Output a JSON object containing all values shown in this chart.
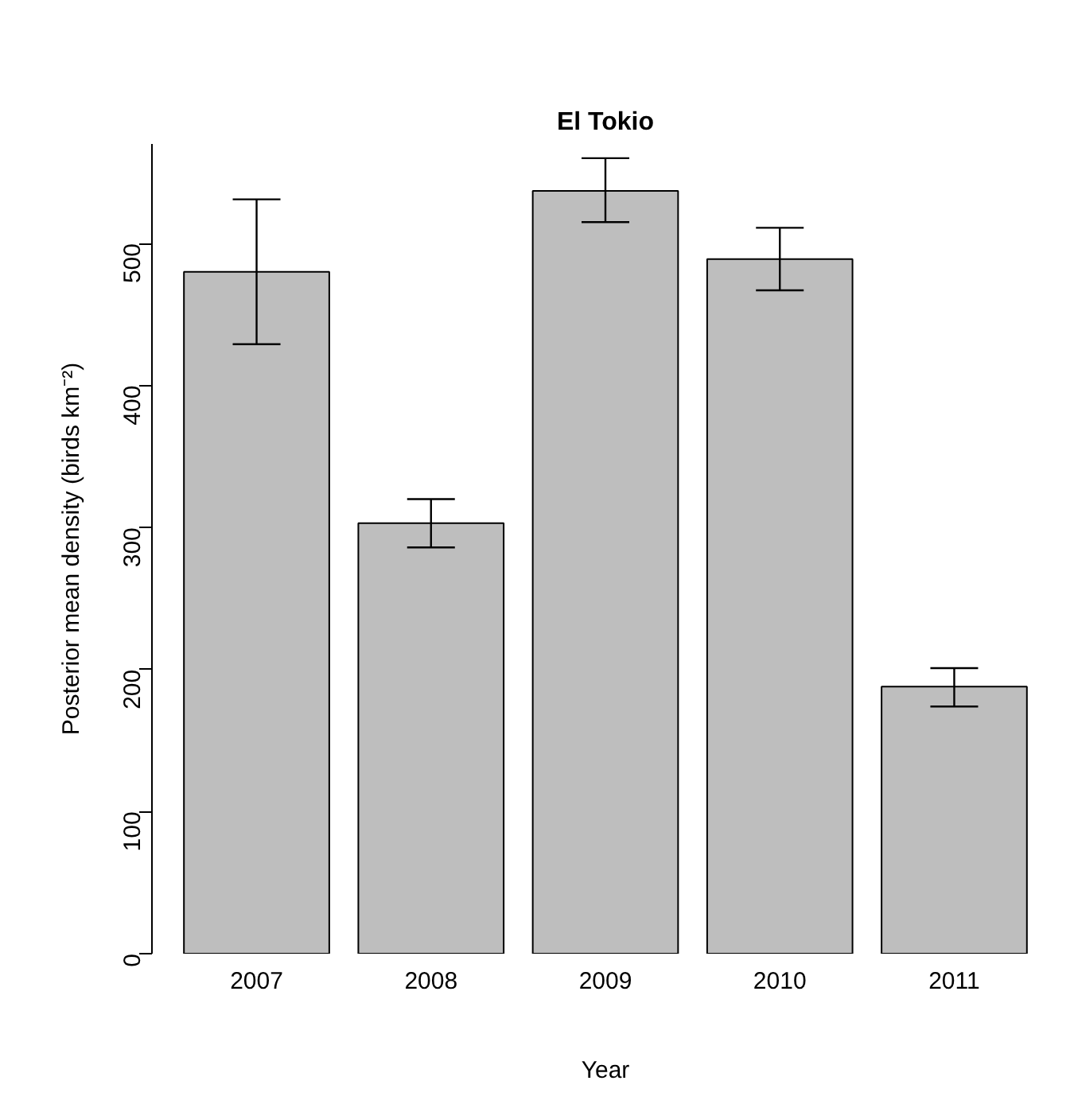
{
  "chart_data": {
    "type": "bar",
    "title": "El Tokio",
    "xlabel": "Year",
    "ylabel": "Posterior mean density (birds km⁻²)",
    "categories": [
      "2007",
      "2008",
      "2009",
      "2010",
      "2011"
    ],
    "values": [
      480,
      303,
      537,
      489,
      188
    ],
    "errors": [
      [
        429,
        531
      ],
      [
        286,
        320
      ],
      [
        515,
        560
      ],
      [
        467,
        511
      ],
      [
        174,
        201
      ]
    ],
    "color": "#bebebe",
    "ylim": [
      0,
      570
    ],
    "yticks": [
      0,
      100,
      200,
      300,
      400,
      500
    ],
    "grid": false
  }
}
